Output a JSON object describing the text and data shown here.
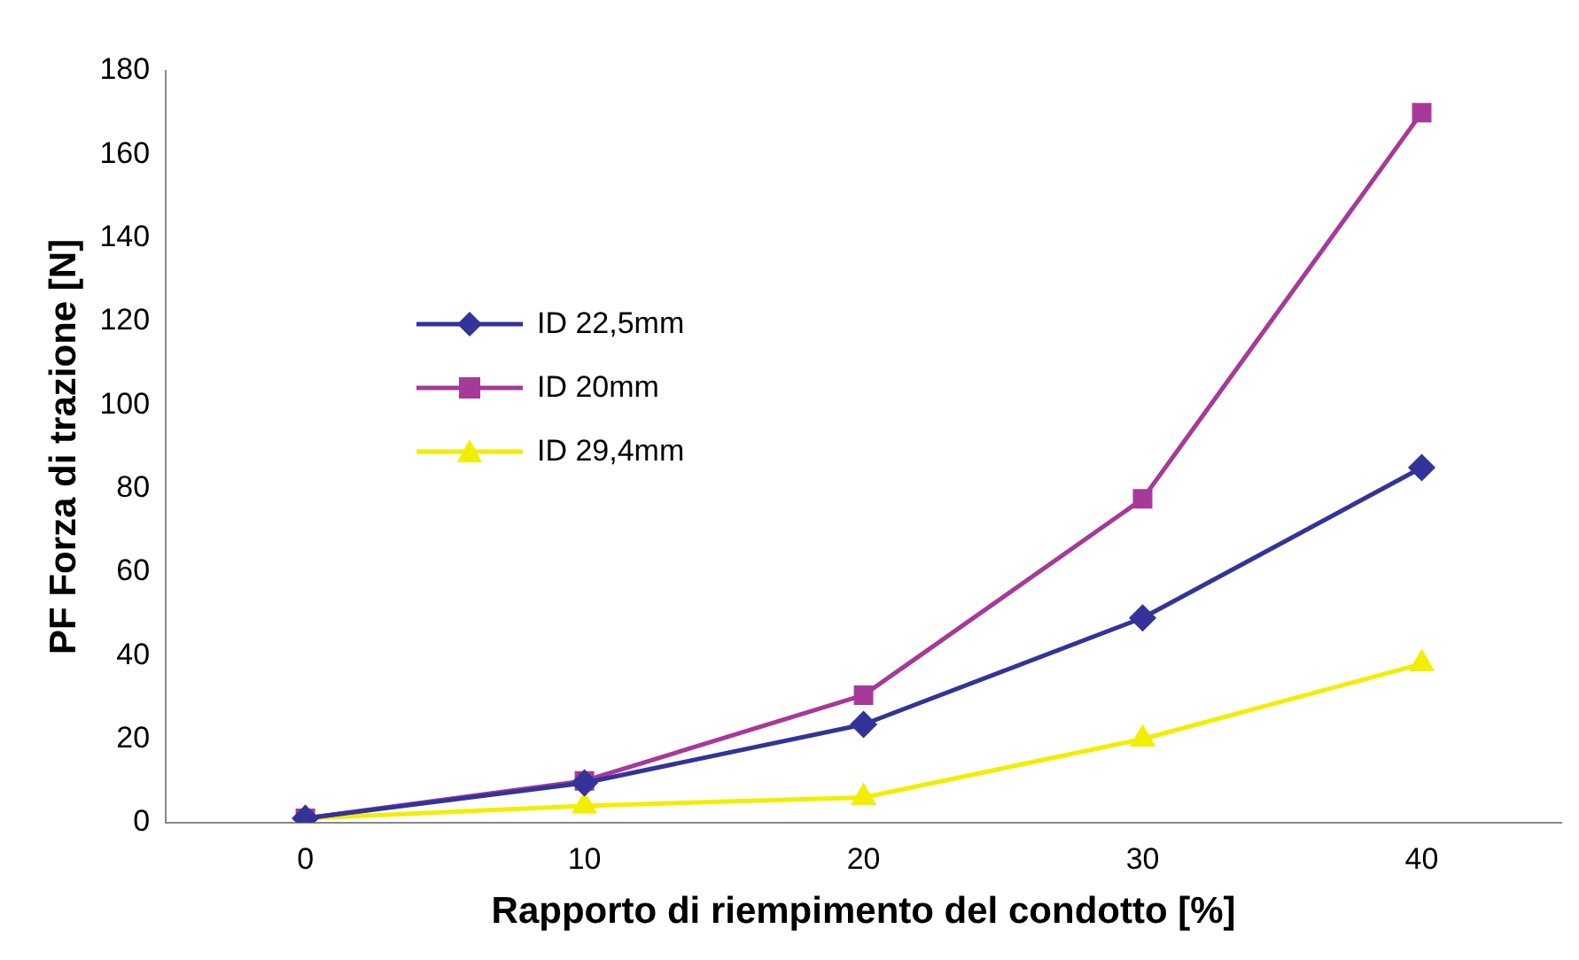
{
  "chart_data": {
    "type": "line",
    "xlabel": "Rapporto di riempimento del condotto [%]",
    "ylabel": "PF Forza di trazione [N]",
    "categories": [
      "0",
      "10",
      "20",
      "30",
      "40"
    ],
    "series": [
      {
        "name": "ID 22,5mm",
        "color": "#333399",
        "marker": "diamond",
        "values": [
          1,
          9.5,
          23.5,
          49,
          85
        ]
      },
      {
        "name": "ID 20mm",
        "color": "#a6399a",
        "marker": "square",
        "values": [
          1,
          10,
          30.5,
          77.5,
          170
        ]
      },
      {
        "name": "ID 29,4mm",
        "color": "#f2ee00",
        "marker": "triangle",
        "values": [
          1,
          4,
          6,
          20,
          38
        ]
      }
    ],
    "ylim": [
      0,
      180
    ],
    "yticks": [
      0,
      20,
      40,
      60,
      80,
      100,
      120,
      140,
      160,
      180
    ],
    "grid": false,
    "legend": "top left"
  }
}
